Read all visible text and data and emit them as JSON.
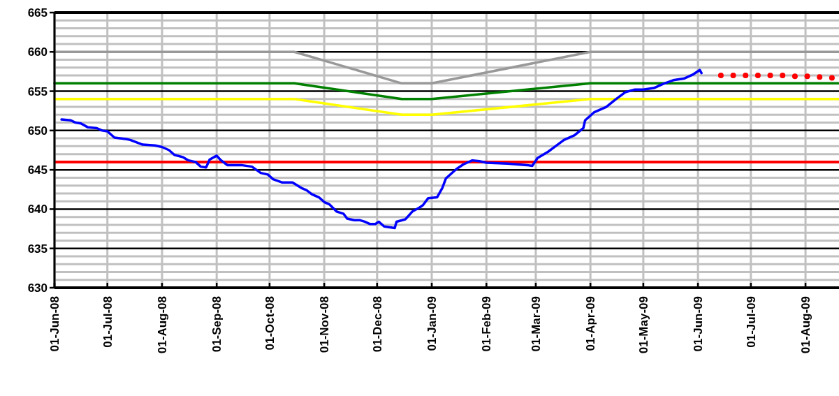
{
  "chart_data": {
    "type": "line",
    "xlim": [
      "2008-06-01",
      "2009-08-20"
    ],
    "ylim": [
      630,
      665
    ],
    "yticks": [
      630,
      635,
      640,
      645,
      650,
      655,
      660,
      665
    ],
    "xticks": [
      {
        "value": "2008-06-01",
        "label": "01-Jun-08"
      },
      {
        "value": "2008-07-01",
        "label": "01-Jul-08"
      },
      {
        "value": "2008-08-01",
        "label": "01-Aug-08"
      },
      {
        "value": "2008-09-01",
        "label": "01-Sep-08"
      },
      {
        "value": "2008-10-01",
        "label": "01-Oct-08"
      },
      {
        "value": "2008-11-01",
        "label": "01-Nov-08"
      },
      {
        "value": "2008-12-01",
        "label": "01-Dec-08"
      },
      {
        "value": "2009-01-01",
        "label": "01-Jan-09"
      },
      {
        "value": "2009-02-01",
        "label": "01-Feb-09"
      },
      {
        "value": "2009-03-01",
        "label": "01-Mar-09"
      },
      {
        "value": "2009-04-01",
        "label": "01-Apr-09"
      },
      {
        "value": "2009-05-01",
        "label": "01-May-09"
      },
      {
        "value": "2009-06-01",
        "label": "01-Jun-09"
      },
      {
        "value": "2009-07-01",
        "label": "01-Jul-09"
      },
      {
        "value": "2009-08-01",
        "label": "01-Aug-09"
      }
    ],
    "grid": true,
    "line_style": "solid",
    "ref_lines": [
      {
        "axis": "y",
        "value": 646,
        "color": "#ff0000"
      }
    ],
    "series": [
      {
        "color": "#999999",
        "x": [
          "2008-06-01",
          "2008-10-15",
          "2008-12-15",
          "2009-01-01",
          "2009-04-01",
          "2009-08-20"
        ],
        "values": [
          660,
          660,
          656,
          656,
          660,
          660
        ]
      },
      {
        "color": "#008000",
        "x": [
          "2008-06-01",
          "2008-10-15",
          "2008-12-15",
          "2009-01-01",
          "2009-04-01",
          "2009-08-20"
        ],
        "values": [
          656,
          656,
          654,
          654,
          656,
          656
        ]
      },
      {
        "color": "#ffff00",
        "x": [
          "2008-06-01",
          "2008-10-15",
          "2008-12-15",
          "2009-01-01",
          "2009-04-01",
          "2009-08-20"
        ],
        "values": [
          654,
          654,
          652,
          652,
          654,
          654
        ]
      },
      {
        "color": "#0000ff",
        "x": [
          "2008-06-05",
          "2008-06-10",
          "2008-06-13",
          "2008-06-16",
          "2008-06-20",
          "2008-06-25",
          "2008-06-28",
          "2008-07-01",
          "2008-07-05",
          "2008-07-12",
          "2008-07-14",
          "2008-07-21",
          "2008-07-28",
          "2008-08-01",
          "2008-08-05",
          "2008-08-08",
          "2008-08-13",
          "2008-08-16",
          "2008-08-20",
          "2008-08-23",
          "2008-08-26",
          "2008-08-28",
          "2008-09-01",
          "2008-09-03",
          "2008-09-07",
          "2008-09-15",
          "2008-09-21",
          "2008-09-26",
          "2008-09-30",
          "2008-10-03",
          "2008-10-08",
          "2008-10-14",
          "2008-10-19",
          "2008-10-22",
          "2008-10-25",
          "2008-10-29",
          "2008-11-01",
          "2008-11-04",
          "2008-11-08",
          "2008-11-12",
          "2008-11-14",
          "2008-11-18",
          "2008-11-21",
          "2008-11-24",
          "2008-11-27",
          "2008-11-30",
          "2008-12-02",
          "2008-12-05",
          "2008-12-11",
          "2008-12-12",
          "2008-12-17",
          "2008-12-21",
          "2008-12-25",
          "2008-12-27",
          "2008-12-30",
          "2009-01-04",
          "2009-01-07",
          "2009-01-09",
          "2009-01-12",
          "2009-01-15",
          "2009-01-19",
          "2009-01-24",
          "2009-01-28",
          "2009-02-01",
          "2009-02-13",
          "2009-02-24",
          "2009-02-27",
          "2009-03-02",
          "2009-03-08",
          "2009-03-11",
          "2009-03-17",
          "2009-03-23",
          "2009-03-28",
          "2009-03-29",
          "2009-04-03",
          "2009-04-10",
          "2009-04-15",
          "2009-04-21",
          "2009-04-26",
          "2009-05-01",
          "2009-05-07",
          "2009-05-12",
          "2009-05-18",
          "2009-05-24",
          "2009-05-29",
          "2009-06-02",
          "2009-06-03"
        ],
        "values": [
          651.4,
          651.3,
          651.0,
          650.9,
          650.4,
          650.3,
          650.0,
          649.9,
          649.1,
          648.9,
          648.8,
          648.2,
          648.1,
          647.9,
          647.5,
          646.9,
          646.6,
          646.2,
          646.0,
          645.4,
          645.3,
          646.3,
          646.8,
          646.3,
          645.6,
          645.6,
          645.4,
          644.6,
          644.4,
          643.8,
          643.4,
          643.4,
          642.7,
          642.4,
          641.9,
          641.5,
          640.9,
          640.6,
          639.7,
          639.4,
          638.8,
          638.6,
          638.6,
          638.4,
          638.1,
          638.1,
          638.4,
          637.8,
          637.6,
          638.4,
          638.7,
          639.7,
          640.2,
          640.5,
          641.4,
          641.5,
          642.7,
          643.9,
          644.5,
          645.1,
          645.7,
          646.2,
          646.1,
          645.9,
          645.8,
          645.6,
          645.5,
          646.5,
          647.3,
          647.8,
          648.8,
          649.4,
          650.3,
          651.3,
          652.3,
          653.0,
          653.9,
          654.9,
          655.2,
          655.2,
          655.4,
          655.9,
          656.4,
          656.6,
          657.1,
          657.7,
          657.3
        ]
      },
      {
        "type": "scatter",
        "marker": "circle",
        "color": "#ff0000",
        "x": [
          "2009-06-14",
          "2009-06-21",
          "2009-06-28",
          "2009-07-05",
          "2009-07-12",
          "2009-07-19",
          "2009-07-26",
          "2009-08-02",
          "2009-08-09",
          "2009-08-16"
        ],
        "values": [
          657,
          657,
          657,
          657,
          657,
          657,
          656.9,
          656.9,
          656.8,
          656.7
        ]
      }
    ]
  }
}
